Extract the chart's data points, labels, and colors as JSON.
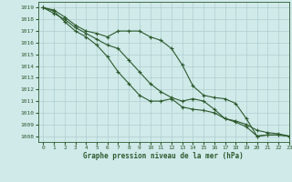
{
  "bg_color": "#d0eaea",
  "grid_color": "#b0cccc",
  "line_color": "#2d5a2d",
  "xlabel": "Graphe pression niveau de la mer (hPa)",
  "xlim": [
    -0.5,
    23
  ],
  "ylim": [
    1007.5,
    1019.5
  ],
  "yticks": [
    1008,
    1009,
    1010,
    1011,
    1012,
    1013,
    1014,
    1015,
    1016,
    1017,
    1018,
    1019
  ],
  "xticks": [
    0,
    1,
    2,
    3,
    4,
    5,
    6,
    7,
    8,
    9,
    10,
    11,
    12,
    13,
    14,
    15,
    16,
    17,
    18,
    19,
    20,
    21,
    22,
    23
  ],
  "line1_x": [
    0,
    1,
    2,
    3,
    4,
    5,
    6,
    7,
    8,
    9,
    10,
    11,
    12,
    13,
    14,
    15,
    16,
    17,
    18,
    19,
    20,
    21,
    22,
    23
  ],
  "line1_y": [
    1019,
    1018.8,
    1018.2,
    1017.5,
    1017.0,
    1016.8,
    1016.5,
    1017.0,
    1017.0,
    1017.0,
    1016.5,
    1016.2,
    1015.5,
    1014.1,
    1012.3,
    1011.5,
    1011.3,
    1011.2,
    1010.8,
    1009.5,
    1008.0,
    1008.1,
    1008.1,
    1008.0
  ],
  "line2_x": [
    0,
    1,
    2,
    3,
    4,
    5,
    6,
    7,
    8,
    9,
    10,
    11,
    12,
    13,
    14,
    15,
    16,
    17,
    18,
    19,
    20,
    21,
    22,
    23
  ],
  "line2_y": [
    1019,
    1018.5,
    1018.0,
    1017.3,
    1016.8,
    1016.3,
    1015.8,
    1015.5,
    1014.5,
    1013.5,
    1012.5,
    1011.8,
    1011.3,
    1011.0,
    1011.2,
    1011.0,
    1010.3,
    1009.5,
    1009.2,
    1008.8,
    1008.0,
    1008.1,
    1008.1,
    1008.0
  ],
  "line3_x": [
    0,
    1,
    2,
    3,
    4,
    5,
    6,
    7,
    8,
    9,
    10,
    11,
    12,
    13,
    14,
    15,
    16,
    17,
    18,
    19,
    20,
    21,
    22,
    23
  ],
  "line3_y": [
    1019,
    1018.7,
    1017.8,
    1017.0,
    1016.5,
    1015.8,
    1014.8,
    1013.5,
    1012.5,
    1011.5,
    1011.0,
    1011.0,
    1011.2,
    1010.5,
    1010.3,
    1010.2,
    1010.0,
    1009.5,
    1009.3,
    1009.0,
    1008.5,
    1008.3,
    1008.2,
    1008.0
  ]
}
